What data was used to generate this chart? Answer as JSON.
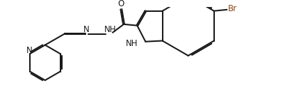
{
  "bg_color": "#ffffff",
  "line_color": "#1a1a1a",
  "br_color": "#8B4513",
  "lw": 1.5,
  "dbo": 0.025,
  "fs": 8.0,
  "fig_w": 4.2,
  "fig_h": 1.55,
  "dpi": 100,
  "xlim": [
    -0.3,
    10.2
  ],
  "ylim": [
    -0.2,
    3.7
  ]
}
